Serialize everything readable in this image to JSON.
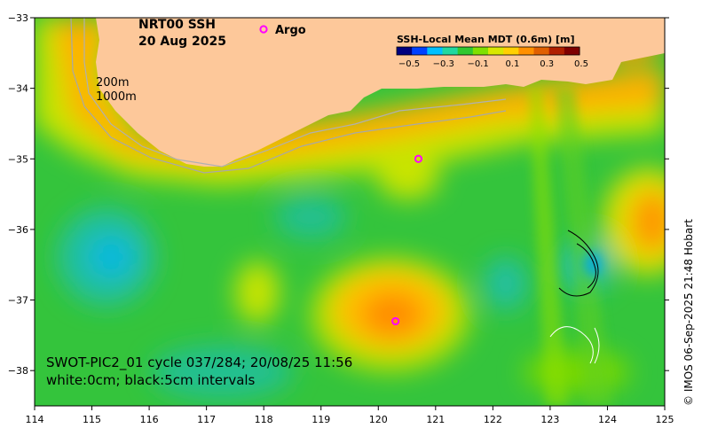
{
  "title": {
    "product": "NRT00 SSH",
    "date": "20 Aug 2025"
  },
  "legend": {
    "argo_symbol": "o",
    "argo_label": "Argo",
    "isobath_200": "200m",
    "isobath_1000": "1000m"
  },
  "colorbar": {
    "title": "SSH-Local Mean MDT (0.6m) [m]",
    "ticks": [
      "−0.5",
      "−0.3",
      "−0.1",
      "0.1",
      "0.3",
      "0.5"
    ],
    "colors": [
      "#00007f",
      "#0040ff",
      "#00c0ff",
      "#20d8a0",
      "#30c830",
      "#80e000",
      "#d8e800",
      "#ffd000",
      "#ff9000",
      "#e06000",
      "#b02000",
      "#7f0000"
    ]
  },
  "annotation": {
    "line1": "SWOT-PIC2_01 cycle 037/284; 20/08/25 11:56",
    "line2": "white:0cm; black:5cm intervals"
  },
  "credit": "© IMOS 06-Sep-2025 21:48 Hobart",
  "axes": {
    "x_ticks": [
      "114",
      "115",
      "116",
      "117",
      "118",
      "119",
      "120",
      "121",
      "122",
      "123",
      "124",
      "125"
    ],
    "y_ticks": [
      "−33",
      "−34",
      "−35",
      "−36",
      "−37",
      "−38"
    ]
  },
  "map": {
    "lon_range": [
      114,
      125
    ],
    "lat_range": [
      -38.5,
      -33
    ],
    "land_color": "#fdc89a",
    "argo_floats": [
      {
        "lon": 120.7,
        "lat": -35.0
      },
      {
        "lon": 120.3,
        "lat": -37.3
      }
    ]
  }
}
